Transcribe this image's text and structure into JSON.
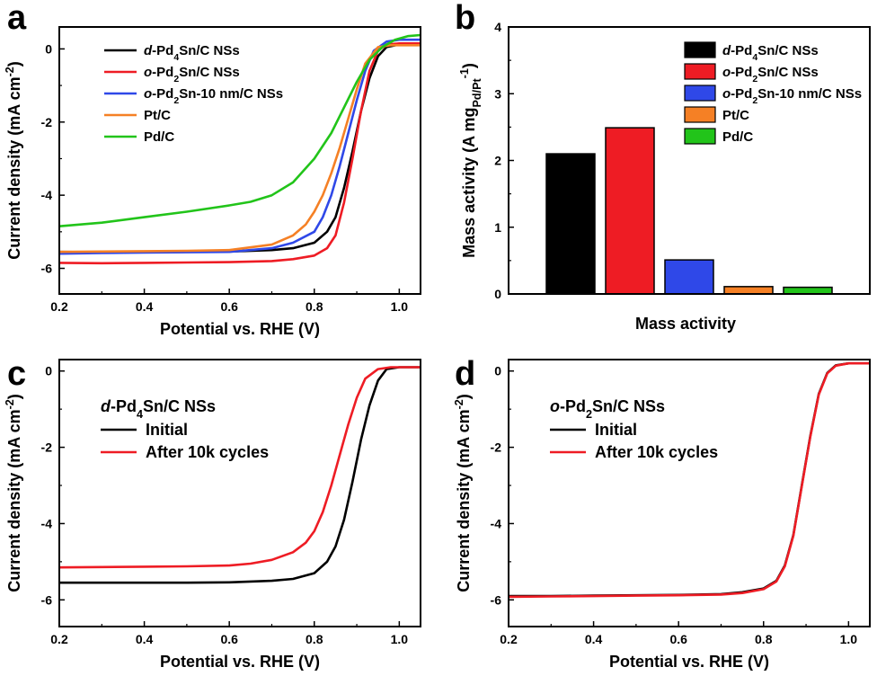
{
  "colors": {
    "black": "#000000",
    "red": "#ee1c24",
    "blue": "#2f48e8",
    "orange": "#f58025",
    "green": "#22c41a"
  },
  "chart_data": [
    {
      "panel": "a",
      "type": "line",
      "xlabel": "Potential vs. RHE (V)",
      "ylabel": "Current density (mA cm⁻²)",
      "ylabel_parts": [
        "Current density (mA cm",
        "-2",
        ")"
      ],
      "xlim": [
        0.2,
        1.05
      ],
      "ylim": [
        -6.7,
        0.6
      ],
      "xticks": [
        0.2,
        0.4,
        0.6,
        0.8,
        1.0
      ],
      "xtick_labels": [
        "0.2",
        "0.4",
        "0.6",
        "0.8",
        "1.0"
      ],
      "yticks": [
        0,
        -2,
        -4,
        -6
      ],
      "ytick_labels": [
        "0",
        "-2",
        "-4",
        "-6"
      ],
      "legend": "top-left",
      "series": [
        {
          "name": "d-Pd4Sn/C NSs",
          "label_parts": [
            [
              "d",
              "i"
            ],
            [
              "-Pd",
              ""
            ],
            [
              "4",
              "s"
            ],
            [
              "Sn/C NSs",
              ""
            ]
          ],
          "color": "black",
          "x": [
            0.2,
            0.3,
            0.4,
            0.5,
            0.6,
            0.7,
            0.75,
            0.8,
            0.83,
            0.85,
            0.87,
            0.89,
            0.91,
            0.93,
            0.95,
            0.97,
            1.0,
            1.05
          ],
          "y": [
            -5.55,
            -5.56,
            -5.56,
            -5.55,
            -5.54,
            -5.5,
            -5.45,
            -5.3,
            -5.0,
            -4.6,
            -3.8,
            -2.8,
            -1.7,
            -0.8,
            -0.2,
            0.05,
            0.12,
            0.12
          ]
        },
        {
          "name": "o-Pd2Sn/C NSs",
          "label_parts": [
            [
              "o",
              "i"
            ],
            [
              "-Pd",
              ""
            ],
            [
              "2",
              "s"
            ],
            [
              "Sn/C NSs",
              ""
            ]
          ],
          "color": "red",
          "x": [
            0.2,
            0.3,
            0.4,
            0.5,
            0.6,
            0.7,
            0.75,
            0.8,
            0.83,
            0.85,
            0.87,
            0.89,
            0.91,
            0.93,
            0.95,
            0.97,
            1.0,
            1.05
          ],
          "y": [
            -5.85,
            -5.86,
            -5.85,
            -5.84,
            -5.83,
            -5.8,
            -5.75,
            -5.65,
            -5.45,
            -5.1,
            -4.2,
            -3.0,
            -1.7,
            -0.6,
            -0.05,
            0.12,
            0.15,
            0.15
          ]
        },
        {
          "name": "o-Pd2Sn-10 nm/C NSs",
          "label_parts": [
            [
              "o",
              "i"
            ],
            [
              "-Pd",
              ""
            ],
            [
              "2",
              "s"
            ],
            [
              "Sn-10 nm/C NSs",
              ""
            ]
          ],
          "color": "blue",
          "x": [
            0.2,
            0.3,
            0.4,
            0.5,
            0.6,
            0.7,
            0.75,
            0.8,
            0.82,
            0.84,
            0.86,
            0.88,
            0.9,
            0.92,
            0.94,
            0.97,
            1.0,
            1.05
          ],
          "y": [
            -5.6,
            -5.58,
            -5.57,
            -5.56,
            -5.55,
            -5.45,
            -5.3,
            -5.0,
            -4.6,
            -4.0,
            -3.2,
            -2.3,
            -1.4,
            -0.6,
            -0.05,
            0.2,
            0.25,
            0.25
          ]
        },
        {
          "name": "Pt/C",
          "label_parts": [
            [
              "Pt/C",
              ""
            ]
          ],
          "color": "orange",
          "x": [
            0.2,
            0.3,
            0.4,
            0.5,
            0.6,
            0.7,
            0.75,
            0.78,
            0.8,
            0.82,
            0.84,
            0.86,
            0.88,
            0.9,
            0.92,
            0.95,
            0.98,
            1.05
          ],
          "y": [
            -5.55,
            -5.54,
            -5.53,
            -5.52,
            -5.5,
            -5.35,
            -5.1,
            -4.8,
            -4.45,
            -4.0,
            -3.4,
            -2.7,
            -1.9,
            -1.1,
            -0.4,
            0.05,
            0.1,
            0.1
          ]
        },
        {
          "name": "Pd/C",
          "label_parts": [
            [
              "Pd/C",
              ""
            ]
          ],
          "color": "green",
          "x": [
            0.2,
            0.3,
            0.4,
            0.5,
            0.6,
            0.65,
            0.7,
            0.75,
            0.8,
            0.84,
            0.87,
            0.9,
            0.93,
            0.96,
            0.99,
            1.02,
            1.05
          ],
          "y": [
            -4.85,
            -4.75,
            -4.6,
            -4.45,
            -4.28,
            -4.18,
            -4.0,
            -3.65,
            -3.0,
            -2.3,
            -1.6,
            -0.9,
            -0.3,
            0.05,
            0.25,
            0.35,
            0.38
          ]
        }
      ]
    },
    {
      "panel": "b",
      "type": "bar",
      "xlabel": "Mass activity",
      "ylabel": "Mass activity (A mgPd/Pt-1)",
      "ylabel_parts": [
        "Mass activity (A mg",
        "Pd/Pt",
        "-1",
        ")"
      ],
      "ylim": [
        0,
        4
      ],
      "yticks": [
        0,
        1,
        2,
        3,
        4
      ],
      "ytick_labels": [
        "0",
        "1",
        "2",
        "3",
        "4"
      ],
      "legend": "top-right",
      "categories": [
        "d-Pd4Sn/C NSs",
        "o-Pd2Sn/C NSs",
        "o-Pd2Sn-10 nm/C NSs",
        "Pt/C",
        "Pd/C"
      ],
      "category_parts": [
        [
          [
            "d",
            "i"
          ],
          [
            "-Pd",
            ""
          ],
          [
            "4",
            "s"
          ],
          [
            "Sn/C NSs",
            ""
          ]
        ],
        [
          [
            "o",
            "i"
          ],
          [
            "-Pd",
            ""
          ],
          [
            "2",
            "s"
          ],
          [
            "Sn/C NSs",
            ""
          ]
        ],
        [
          [
            "o",
            "i"
          ],
          [
            "-Pd",
            ""
          ],
          [
            "2",
            "s"
          ],
          [
            "Sn-10 nm/C NSs",
            ""
          ]
        ],
        [
          [
            "Pt/C",
            ""
          ]
        ],
        [
          [
            "Pd/C",
            ""
          ]
        ]
      ],
      "colors": [
        "black",
        "red",
        "blue",
        "orange",
        "green"
      ],
      "values": [
        2.1,
        2.49,
        0.51,
        0.11,
        0.1
      ]
    },
    {
      "panel": "c",
      "type": "line",
      "xlabel": "Potential vs. RHE (V)",
      "ylabel": "Current density (mA cm⁻²)",
      "ylabel_parts": [
        "Current density (mA cm",
        "-2",
        ")"
      ],
      "xlim": [
        0.2,
        1.05
      ],
      "ylim": [
        -6.7,
        0.3
      ],
      "xticks": [
        0.2,
        0.4,
        0.6,
        0.8,
        1.0
      ],
      "xtick_labels": [
        "0.2",
        "0.4",
        "0.6",
        "0.8",
        "1.0"
      ],
      "yticks": [
        0,
        -2,
        -4,
        -6
      ],
      "ytick_labels": [
        "0",
        "-2",
        "-4",
        "-6"
      ],
      "annotation": "d-Pd4Sn/C NSs",
      "annotation_parts": [
        [
          "d",
          "i"
        ],
        [
          "-Pd",
          ""
        ],
        [
          "4",
          "s"
        ],
        [
          "Sn/C NSs",
          ""
        ]
      ],
      "legend": "top-left",
      "series": [
        {
          "name": "Initial",
          "label_parts": [
            [
              "Initial",
              ""
            ]
          ],
          "color": "black",
          "x": [
            0.2,
            0.3,
            0.4,
            0.5,
            0.6,
            0.7,
            0.75,
            0.8,
            0.83,
            0.85,
            0.87,
            0.89,
            0.91,
            0.93,
            0.95,
            0.97,
            1.0,
            1.05
          ],
          "y": [
            -5.55,
            -5.55,
            -5.55,
            -5.55,
            -5.54,
            -5.5,
            -5.45,
            -5.3,
            -5.0,
            -4.6,
            -3.9,
            -2.9,
            -1.8,
            -0.9,
            -0.25,
            0.05,
            0.1,
            0.1
          ]
        },
        {
          "name": "After 10k cycles",
          "label_parts": [
            [
              "After 10k cycles",
              ""
            ]
          ],
          "color": "red",
          "x": [
            0.2,
            0.3,
            0.4,
            0.5,
            0.6,
            0.65,
            0.7,
            0.75,
            0.78,
            0.8,
            0.82,
            0.84,
            0.86,
            0.88,
            0.9,
            0.92,
            0.95,
            0.98,
            1.05
          ],
          "y": [
            -5.15,
            -5.14,
            -5.13,
            -5.12,
            -5.1,
            -5.05,
            -4.95,
            -4.75,
            -4.5,
            -4.2,
            -3.7,
            -3.0,
            -2.2,
            -1.4,
            -0.7,
            -0.2,
            0.05,
            0.1,
            0.1
          ]
        }
      ]
    },
    {
      "panel": "d",
      "type": "line",
      "xlabel": "Potential vs. RHE (V)",
      "ylabel": "Current density (mA cm⁻²)",
      "ylabel_parts": [
        "Current density (mA cm",
        "-2",
        ")"
      ],
      "xlim": [
        0.2,
        1.05
      ],
      "ylim": [
        -6.7,
        0.3
      ],
      "xticks": [
        0.2,
        0.4,
        0.6,
        0.8,
        1.0
      ],
      "xtick_labels": [
        "0.2",
        "0.4",
        "0.6",
        "0.8",
        "1.0"
      ],
      "yticks": [
        0,
        -2,
        -4,
        -6
      ],
      "ytick_labels": [
        "0",
        "-2",
        "-4",
        "-6"
      ],
      "annotation": "o-Pd2Sn/C NSs",
      "annotation_parts": [
        [
          "o",
          "i"
        ],
        [
          "-Pd",
          ""
        ],
        [
          "2",
          "s"
        ],
        [
          "Sn/C NSs",
          ""
        ]
      ],
      "legend": "top-left",
      "series": [
        {
          "name": "Initial",
          "label_parts": [
            [
              "Initial",
              ""
            ]
          ],
          "color": "black",
          "x": [
            0.2,
            0.3,
            0.4,
            0.5,
            0.6,
            0.7,
            0.75,
            0.8,
            0.83,
            0.85,
            0.87,
            0.89,
            0.91,
            0.93,
            0.95,
            0.97,
            1.0,
            1.05
          ],
          "y": [
            -5.9,
            -5.9,
            -5.89,
            -5.88,
            -5.87,
            -5.85,
            -5.8,
            -5.7,
            -5.5,
            -5.1,
            -4.3,
            -3.0,
            -1.7,
            -0.6,
            -0.05,
            0.15,
            0.2,
            0.2
          ]
        },
        {
          "name": "After 10k cycles",
          "label_parts": [
            [
              "After 10k cycles",
              ""
            ]
          ],
          "color": "red",
          "x": [
            0.2,
            0.3,
            0.4,
            0.5,
            0.6,
            0.7,
            0.75,
            0.8,
            0.83,
            0.85,
            0.87,
            0.89,
            0.91,
            0.93,
            0.95,
            0.97,
            1.0,
            1.05
          ],
          "y": [
            -5.92,
            -5.91,
            -5.9,
            -5.89,
            -5.88,
            -5.86,
            -5.82,
            -5.72,
            -5.52,
            -5.12,
            -4.32,
            -3.02,
            -1.72,
            -0.62,
            -0.06,
            0.14,
            0.2,
            0.2
          ]
        }
      ]
    }
  ]
}
